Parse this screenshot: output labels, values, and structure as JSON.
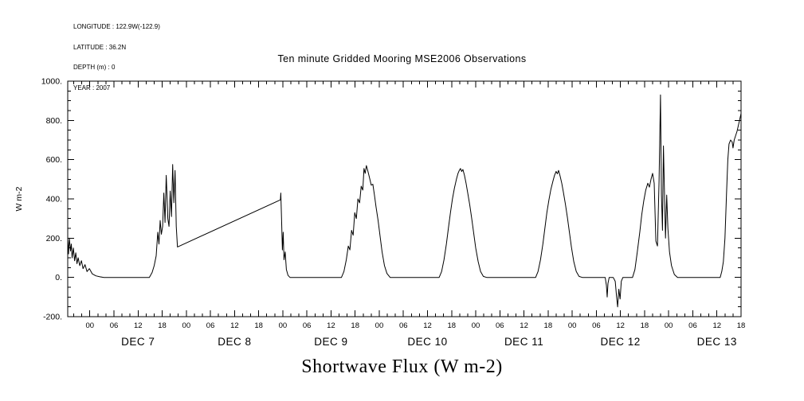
{
  "meta": {
    "longitude": "LONGITUDE : 122.9W(-122.9)",
    "latitude": "LATITUDE : 36.2N",
    "depth": "DEPTH (m) : 0",
    "year": "YEAR : 2007"
  },
  "chart_data": {
    "type": "line",
    "title": "Ten minute Gridded Mooring MSE2006 Observations",
    "xlabel": "Shortwave Flux (W m-2)",
    "ylabel": "W m-2",
    "x_unit": "hours since 2007-12-07 00:00",
    "xlim": [
      -5.5,
      162
    ],
    "ylim": [
      -200,
      1000
    ],
    "x_major_step": 6,
    "x_minor_step": 2,
    "y_major_step": 200,
    "y_minor_step": 50,
    "grid": false,
    "legend": "none",
    "line_color": "#000000",
    "background": "#ffffff",
    "hour_labels": [
      "00",
      "06",
      "12",
      "18"
    ],
    "day_labels": [
      "DEC 7",
      "DEC 8",
      "DEC 9",
      "DEC 10",
      "DEC 11",
      "DEC 12",
      "DEC 13"
    ],
    "y_ticks": [
      {
        "value": 1000,
        "label": "1000."
      },
      {
        "value": 800,
        "label": "800."
      },
      {
        "value": 600,
        "label": "600."
      },
      {
        "value": 400,
        "label": "400."
      },
      {
        "value": 200,
        "label": "200."
      },
      {
        "value": 0,
        "label": "0."
      },
      {
        "value": -200,
        "label": "-200."
      }
    ],
    "series": [
      {
        "name": "shortwave_flux_w_m2",
        "points": [
          [
            -5.5,
            195
          ],
          [
            -5.3,
            120
          ],
          [
            -5.1,
            200
          ],
          [
            -4.8,
            135
          ],
          [
            -4.6,
            170
          ],
          [
            -4.4,
            100
          ],
          [
            -4.1,
            150
          ],
          [
            -3.8,
            85
          ],
          [
            -3.5,
            125
          ],
          [
            -3.2,
            70
          ],
          [
            -2.9,
            100
          ],
          [
            -2.5,
            60
          ],
          [
            -2.1,
            85
          ],
          [
            -1.7,
            45
          ],
          [
            -1.2,
            65
          ],
          [
            -0.7,
            30
          ],
          [
            -0.1,
            45
          ],
          [
            0.6,
            18
          ],
          [
            1.5,
            8
          ],
          [
            2.5,
            3
          ],
          [
            3.5,
            0
          ],
          [
            14.8,
            0
          ],
          [
            15.5,
            25
          ],
          [
            16.0,
            60
          ],
          [
            16.5,
            110
          ],
          [
            16.9,
            230
          ],
          [
            17.2,
            170
          ],
          [
            17.5,
            290
          ],
          [
            17.8,
            220
          ],
          [
            18.1,
            260
          ],
          [
            18.4,
            430
          ],
          [
            18.7,
            280
          ],
          [
            19.0,
            520
          ],
          [
            19.2,
            420
          ],
          [
            19.4,
            300
          ],
          [
            19.7,
            260
          ],
          [
            20.0,
            440
          ],
          [
            20.3,
            310
          ],
          [
            20.6,
            575
          ],
          [
            20.9,
            380
          ],
          [
            21.2,
            545
          ],
          [
            21.5,
            260
          ],
          [
            21.8,
            155
          ],
          [
            47.4,
            395
          ],
          [
            47.5,
            430
          ],
          [
            47.7,
            290
          ],
          [
            47.9,
            140
          ],
          [
            48.1,
            230
          ],
          [
            48.3,
            90
          ],
          [
            48.6,
            130
          ],
          [
            48.9,
            40
          ],
          [
            49.3,
            10
          ],
          [
            49.8,
            0
          ],
          [
            62.6,
            0
          ],
          [
            63.2,
            30
          ],
          [
            63.8,
            90
          ],
          [
            64.3,
            160
          ],
          [
            64.7,
            140
          ],
          [
            65.1,
            240
          ],
          [
            65.5,
            215
          ],
          [
            65.9,
            330
          ],
          [
            66.3,
            300
          ],
          [
            66.7,
            400
          ],
          [
            67.1,
            380
          ],
          [
            67.5,
            465
          ],
          [
            67.9,
            445
          ],
          [
            68.2,
            555
          ],
          [
            68.5,
            530
          ],
          [
            68.8,
            570
          ],
          [
            69.2,
            540
          ],
          [
            69.6,
            505
          ],
          [
            70.0,
            470
          ],
          [
            70.4,
            475
          ],
          [
            70.8,
            420
          ],
          [
            71.2,
            360
          ],
          [
            71.7,
            290
          ],
          [
            72.2,
            210
          ],
          [
            72.7,
            130
          ],
          [
            73.3,
            60
          ],
          [
            73.9,
            20
          ],
          [
            74.7,
            0
          ],
          [
            86.9,
            0
          ],
          [
            87.5,
            30
          ],
          [
            88.1,
            90
          ],
          [
            88.7,
            170
          ],
          [
            89.2,
            250
          ],
          [
            89.7,
            330
          ],
          [
            90.2,
            400
          ],
          [
            90.7,
            455
          ],
          [
            91.2,
            500
          ],
          [
            91.6,
            530
          ],
          [
            91.9,
            545
          ],
          [
            92.2,
            555
          ],
          [
            92.5,
            540
          ],
          [
            92.8,
            550
          ],
          [
            93.2,
            520
          ],
          [
            93.6,
            480
          ],
          [
            94.0,
            430
          ],
          [
            94.5,
            370
          ],
          [
            95.0,
            300
          ],
          [
            95.5,
            225
          ],
          [
            96.0,
            150
          ],
          [
            96.6,
            80
          ],
          [
            97.2,
            30
          ],
          [
            97.9,
            5
          ],
          [
            98.7,
            0
          ],
          [
            110.9,
            0
          ],
          [
            111.5,
            30
          ],
          [
            112.1,
            90
          ],
          [
            112.7,
            170
          ],
          [
            113.2,
            250
          ],
          [
            113.7,
            330
          ],
          [
            114.2,
            395
          ],
          [
            114.7,
            450
          ],
          [
            115.2,
            490
          ],
          [
            115.6,
            520
          ],
          [
            116.0,
            540
          ],
          [
            116.3,
            528
          ],
          [
            116.6,
            545
          ],
          [
            117.0,
            515
          ],
          [
            117.4,
            480
          ],
          [
            117.8,
            435
          ],
          [
            118.3,
            375
          ],
          [
            118.8,
            305
          ],
          [
            119.3,
            230
          ],
          [
            119.8,
            155
          ],
          [
            120.4,
            80
          ],
          [
            121.0,
            30
          ],
          [
            121.7,
            5
          ],
          [
            122.5,
            0
          ],
          [
            128.2,
            0
          ],
          [
            128.5,
            -40
          ],
          [
            128.7,
            -100
          ],
          [
            128.9,
            -30
          ],
          [
            129.2,
            0
          ],
          [
            130.2,
            0
          ],
          [
            130.7,
            -20
          ],
          [
            131.0,
            -90
          ],
          [
            131.3,
            -150
          ],
          [
            131.6,
            -60
          ],
          [
            131.9,
            -110
          ],
          [
            132.2,
            -20
          ],
          [
            132.6,
            0
          ],
          [
            135.0,
            0
          ],
          [
            135.6,
            40
          ],
          [
            136.2,
            130
          ],
          [
            136.8,
            230
          ],
          [
            137.3,
            320
          ],
          [
            137.8,
            390
          ],
          [
            138.3,
            445
          ],
          [
            138.8,
            480
          ],
          [
            139.2,
            460
          ],
          [
            139.6,
            500
          ],
          [
            140.0,
            530
          ],
          [
            140.4,
            480
          ],
          [
            140.8,
            185
          ],
          [
            141.2,
            160
          ],
          [
            141.6,
            490
          ],
          [
            141.95,
            930
          ],
          [
            142.2,
            420
          ],
          [
            142.45,
            240
          ],
          [
            142.7,
            670
          ],
          [
            142.95,
            430
          ],
          [
            143.2,
            200
          ],
          [
            143.5,
            420
          ],
          [
            143.8,
            250
          ],
          [
            144.2,
            130
          ],
          [
            144.7,
            60
          ],
          [
            145.4,
            15
          ],
          [
            146.2,
            0
          ],
          [
            156.8,
            0
          ],
          [
            157.2,
            30
          ],
          [
            157.6,
            80
          ],
          [
            158.0,
            200
          ],
          [
            158.4,
            430
          ],
          [
            158.7,
            600
          ],
          [
            159.0,
            680
          ],
          [
            159.4,
            700
          ],
          [
            159.8,
            690
          ],
          [
            160.0,
            660
          ],
          [
            160.3,
            700
          ],
          [
            161.0,
            745
          ],
          [
            161.5,
            790
          ],
          [
            162.0,
            835
          ]
        ]
      }
    ]
  }
}
